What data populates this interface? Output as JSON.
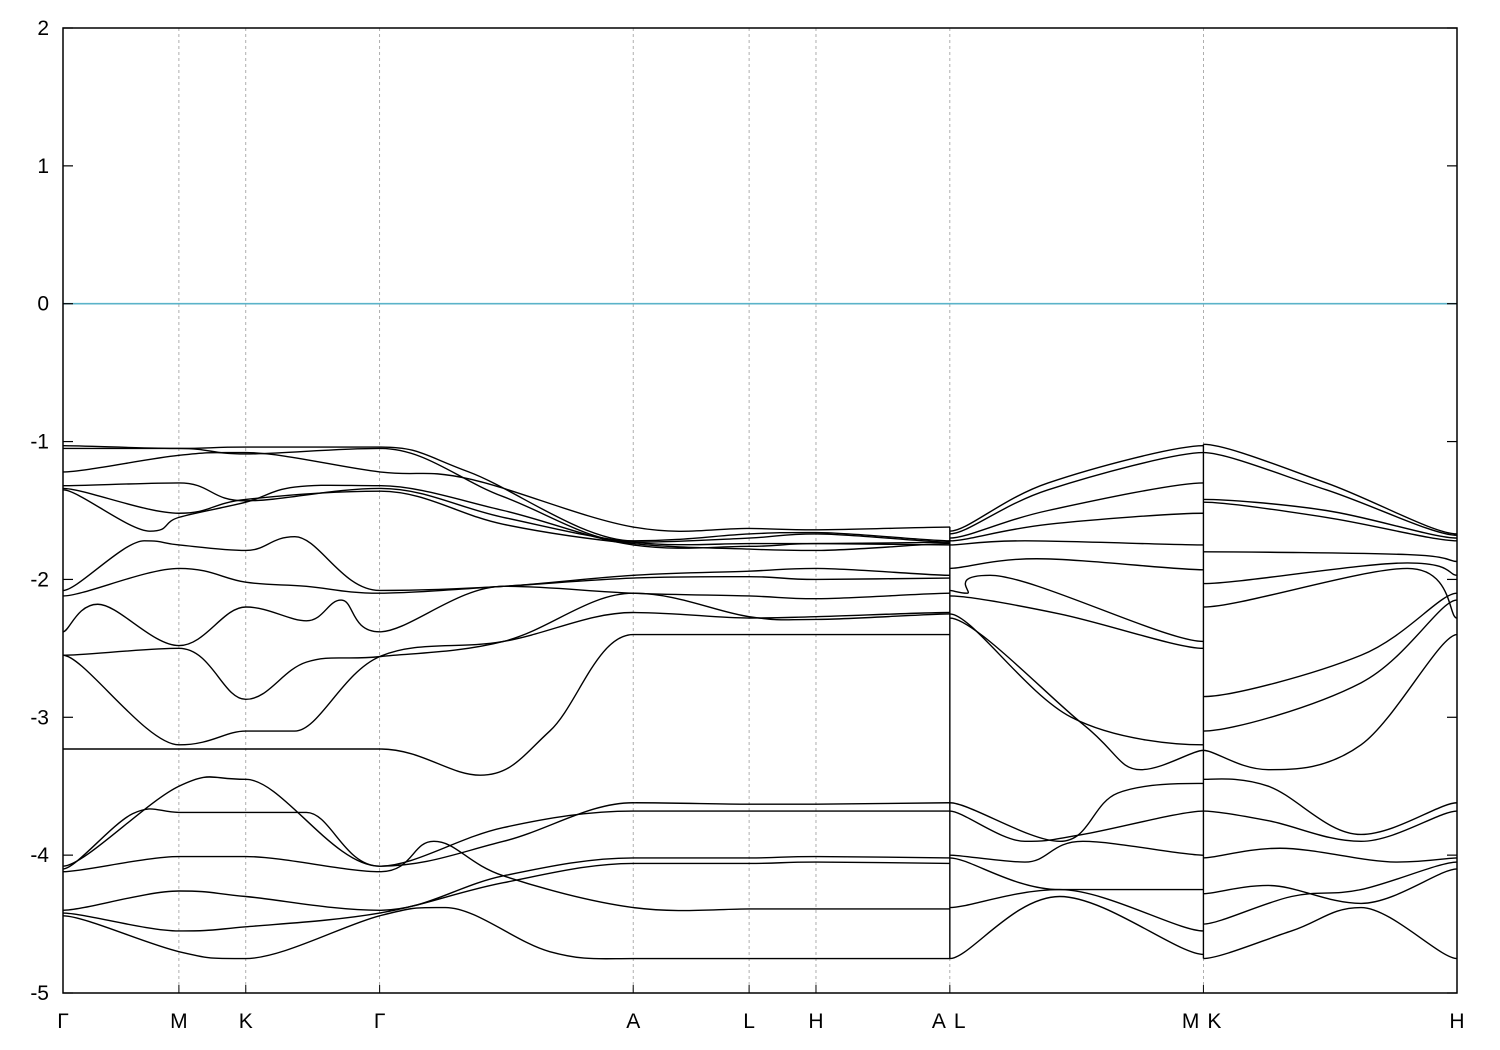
{
  "chart_data": {
    "type": "line",
    "title": "",
    "xlabel": "",
    "ylabel": "",
    "ylim": [
      -5,
      2
    ],
    "yticks": [
      "2",
      "1",
      "0",
      "-1",
      "-2",
      "-3",
      "-4",
      "-5"
    ],
    "ytick_values": [
      2,
      1,
      0,
      -1,
      -2,
      -3,
      -4,
      -5
    ],
    "grid": "vertical dashed lines at high-symmetry points",
    "legend": "none",
    "fermi_level": {
      "value": 0,
      "color": "#5bb3c9"
    },
    "band_color": "#000000",
    "kpoints": [
      {
        "label": "Γ",
        "pos": 0
      },
      {
        "label": "M",
        "pos": 1
      },
      {
        "label": "K",
        "pos": 1.577
      },
      {
        "label": "Γ",
        "pos": 2.732
      },
      {
        "label": "A",
        "pos": 4.92
      },
      {
        "label": "L",
        "pos": 5.92
      },
      {
        "label": "H",
        "pos": 6.497
      },
      {
        "label": "A",
        "pos": 7.652
      },
      {
        "label": "L",
        "pos": 7.652
      },
      {
        "label": "M",
        "pos": 9.84
      },
      {
        "label": "K",
        "pos": 9.84
      },
      {
        "label": "H",
        "pos": 12.028
      }
    ],
    "xlim": [
      0,
      12.028
    ],
    "series": [
      {
        "x": [
          0,
          1,
          1.577,
          2.732,
          3.5,
          4.92,
          5.92,
          6.497,
          7.652
        ],
        "y": [
          -1.03,
          -1.05,
          -1.04,
          -1.04,
          -1.22,
          -1.72,
          -1.67,
          -1.66,
          -1.72
        ]
      },
      {
        "x": [
          0,
          1,
          1.577,
          2.732,
          3.8,
          4.92,
          5.92,
          6.497,
          7.652
        ],
        "y": [
          -1.05,
          -1.05,
          -1.09,
          -1.05,
          -1.4,
          -1.73,
          -1.7,
          -1.67,
          -1.73
        ]
      },
      {
        "x": [
          0,
          1,
          1.577,
          2.732,
          3.5,
          4.92,
          5.92,
          6.497,
          7.652
        ],
        "y": [
          -1.22,
          -1.1,
          -1.08,
          -1.22,
          -1.27,
          -1.62,
          -1.63,
          -1.64,
          -1.62
        ]
      },
      {
        "x": [
          0,
          1,
          1.577,
          2.732,
          3.8,
          4.92,
          5.92,
          6.497,
          7.652
        ],
        "y": [
          -1.32,
          -1.3,
          -1.43,
          -1.34,
          -1.55,
          -1.73,
          -1.74,
          -1.74,
          -1.73
        ]
      },
      {
        "x": [
          0,
          1,
          1.577,
          2.732,
          3.8,
          4.92,
          5.92,
          6.497,
          7.652
        ],
        "y": [
          -1.34,
          -1.52,
          -1.42,
          -1.36,
          -1.6,
          -1.74,
          -1.78,
          -1.79,
          -1.74
        ]
      },
      {
        "x": [
          0,
          0.75,
          1,
          1.577,
          2.0,
          2.732,
          3.8,
          4.92,
          5.92,
          6.497,
          7.652
        ],
        "y": [
          -1.35,
          -1.65,
          -1.55,
          -1.44,
          -1.33,
          -1.32,
          -1.5,
          -1.75,
          -1.76,
          -1.74,
          -1.75
        ]
      },
      {
        "x": [
          0,
          0.7,
          1,
          1.577,
          2.0,
          2.732,
          3.8,
          4.92,
          5.92,
          6.497,
          7.652
        ],
        "y": [
          -2.08,
          -1.72,
          -1.75,
          -1.79,
          -1.69,
          -2.08,
          -2.05,
          -1.97,
          -1.94,
          -1.92,
          -1.97
        ]
      },
      {
        "x": [
          0,
          1,
          1.577,
          2.1,
          2.732,
          3.8,
          4.92,
          5.92,
          6.497,
          7.652
        ],
        "y": [
          -2.12,
          -1.92,
          -2.02,
          -2.05,
          -2.1,
          -2.05,
          -1.99,
          -1.98,
          -2.0,
          -1.99
        ]
      },
      {
        "x": [
          0,
          0.3,
          1,
          1.577,
          2.1,
          2.4,
          2.732,
          3.8,
          4.92,
          5.92,
          6.497,
          7.652
        ],
        "y": [
          -2.38,
          -2.18,
          -2.48,
          -2.2,
          -2.3,
          -2.15,
          -2.38,
          -2.05,
          -2.1,
          -2.12,
          -2.14,
          -2.1
        ]
      },
      {
        "x": [
          0,
          1,
          1.577,
          2.1,
          2.732,
          3.8,
          4.92,
          5.92,
          6.497,
          7.652
        ],
        "y": [
          -2.55,
          -2.5,
          -2.87,
          -2.6,
          -2.56,
          -2.45,
          -2.1,
          -2.27,
          -2.29,
          -2.25
        ]
      },
      {
        "x": [
          0,
          1,
          1.577,
          2.0,
          2.732,
          3.8,
          4.92,
          5.92,
          6.497,
          7.652
        ],
        "y": [
          -2.55,
          -3.2,
          -3.1,
          -3.1,
          -2.56,
          -2.45,
          -2.24,
          -2.28,
          -2.27,
          -2.24
        ]
      },
      {
        "x": [
          0,
          1,
          1.577,
          2.732,
          3.6,
          4.2,
          4.92,
          5.92,
          6.497,
          7.652
        ],
        "y": [
          -3.23,
          -3.23,
          -3.23,
          -3.23,
          -3.42,
          -3.1,
          -2.4,
          -2.4,
          -2.4,
          -2.4
        ]
      },
      {
        "x": [
          0,
          1,
          1.577,
          2.732,
          3.8,
          4.92,
          5.92,
          6.497,
          7.652
        ],
        "y": [
          -4.08,
          -3.5,
          -3.45,
          -4.08,
          -3.9,
          -3.62,
          -3.63,
          -3.63,
          -3.62
        ]
      },
      {
        "x": [
          0,
          0.6,
          1,
          1.577,
          2.1,
          2.732,
          3.8,
          4.92,
          5.92,
          6.497,
          7.652
        ],
        "y": [
          -4.1,
          -3.7,
          -3.69,
          -3.69,
          -3.69,
          -4.08,
          -3.8,
          -3.68,
          -3.68,
          -3.68,
          -3.68
        ]
      },
      {
        "x": [
          0,
          1,
          1.577,
          2.732,
          3.2,
          3.8,
          4.92,
          5.92,
          6.497,
          7.652
        ],
        "y": [
          -4.12,
          -4.01,
          -4.01,
          -4.12,
          -3.9,
          -4.15,
          -4.38,
          -4.39,
          -4.39,
          -4.39
        ]
      },
      {
        "x": [
          0,
          1,
          1.577,
          2.732,
          3.8,
          4.92,
          5.92,
          6.497,
          7.652
        ],
        "y": [
          -4.4,
          -4.26,
          -4.3,
          -4.4,
          -4.15,
          -4.02,
          -4.02,
          -4.01,
          -4.02
        ]
      },
      {
        "x": [
          0,
          1,
          1.577,
          2.732,
          3.8,
          4.92,
          5.92,
          6.497,
          7.652
        ],
        "y": [
          -4.42,
          -4.55,
          -4.52,
          -4.42,
          -4.2,
          -4.06,
          -4.06,
          -4.05,
          -4.06
        ]
      },
      {
        "x": [
          0,
          1,
          1.577,
          2.732,
          3.3,
          4.2,
          4.92,
          5.92,
          6.497,
          7.652
        ],
        "y": [
          -4.44,
          -4.7,
          -4.75,
          -4.44,
          -4.38,
          -4.7,
          -4.75,
          -4.75,
          -4.75,
          -4.75
        ]
      },
      {
        "x": [
          7.652,
          8.5,
          9.84
        ],
        "y": [
          -1.65,
          -1.3,
          -1.03
        ]
      },
      {
        "x": [
          7.652,
          8.5,
          9.84
        ],
        "y": [
          -1.67,
          -1.35,
          -1.08
        ]
      },
      {
        "x": [
          7.652,
          8.5,
          9.84
        ],
        "y": [
          -1.7,
          -1.5,
          -1.3
        ]
      },
      {
        "x": [
          7.652,
          8.5,
          9.84
        ],
        "y": [
          -1.72,
          -1.6,
          -1.52
        ]
      },
      {
        "x": [
          7.652,
          8.3,
          9.84
        ],
        "y": [
          -1.75,
          -1.72,
          -1.75
        ]
      },
      {
        "x": [
          7.652,
          8.4,
          9.84
        ],
        "y": [
          -1.92,
          -1.85,
          -1.93
        ]
      },
      {
        "x": [
          7.652,
          7.8,
          8.0,
          9.84
        ],
        "y": [
          -2.08,
          -2.1,
          -1.97,
          -2.45
        ]
      },
      {
        "x": [
          7.652,
          8.6,
          9.84
        ],
        "y": [
          -2.12,
          -2.25,
          -2.5
        ]
      },
      {
        "x": [
          7.652,
          8.7,
          9.84
        ],
        "y": [
          -2.25,
          -3.0,
          -3.2
        ]
      },
      {
        "x": [
          7.652,
          8.8,
          9.3,
          9.84
        ],
        "y": [
          -2.28,
          -3.05,
          -3.38,
          -3.24
        ]
      },
      {
        "x": [
          7.652,
          8.6,
          9.1,
          9.84
        ],
        "y": [
          -3.62,
          -3.9,
          -3.55,
          -3.48
        ]
      },
      {
        "x": [
          7.652,
          8.3,
          8.8,
          9.84
        ],
        "y": [
          -3.68,
          -3.9,
          -3.85,
          -3.68
        ]
      },
      {
        "x": [
          7.652,
          8.3,
          8.8,
          9.84
        ],
        "y": [
          -4.0,
          -4.05,
          -3.9,
          -4.0
        ]
      },
      {
        "x": [
          7.652,
          8.6,
          9.84
        ],
        "y": [
          -4.02,
          -4.25,
          -4.25
        ]
      },
      {
        "x": [
          7.652,
          8.6,
          9.84
        ],
        "y": [
          -4.38,
          -4.25,
          -4.55
        ]
      },
      {
        "x": [
          7.652,
          8.6,
          9.84
        ],
        "y": [
          -4.75,
          -4.3,
          -4.72
        ]
      },
      {
        "x": [
          9.84,
          10.9,
          12.028
        ],
        "y": [
          -1.02,
          -1.3,
          -1.67
        ]
      },
      {
        "x": [
          9.84,
          10.9,
          12.028
        ],
        "y": [
          -1.08,
          -1.35,
          -1.68
        ]
      },
      {
        "x": [
          9.84,
          10.9,
          12.028
        ],
        "y": [
          -1.42,
          -1.5,
          -1.7
        ]
      },
      {
        "x": [
          9.84,
          10.9,
          12.028
        ],
        "y": [
          -1.44,
          -1.55,
          -1.72
        ]
      },
      {
        "x": [
          9.84,
          11.6,
          12.028
        ],
        "y": [
          -1.8,
          -1.82,
          -1.87
        ]
      },
      {
        "x": [
          9.84,
          11.6,
          12.028
        ],
        "y": [
          -2.03,
          -1.88,
          -1.97
        ]
      },
      {
        "x": [
          9.84,
          11.6,
          12.028
        ],
        "y": [
          -2.2,
          -1.92,
          -2.28
        ]
      },
      {
        "x": [
          9.84,
          11.2,
          12.028
        ],
        "y": [
          -2.85,
          -2.55,
          -2.1
        ]
      },
      {
        "x": [
          9.84,
          11.2,
          12.028
        ],
        "y": [
          -3.1,
          -2.75,
          -2.15
        ]
      },
      {
        "x": [
          9.84,
          10.4,
          11.2,
          12.028
        ],
        "y": [
          -3.24,
          -3.38,
          -3.2,
          -2.4
        ]
      },
      {
        "x": [
          9.84,
          10.4,
          11.2,
          12.028
        ],
        "y": [
          -3.45,
          -3.5,
          -3.85,
          -3.62
        ]
      },
      {
        "x": [
          9.84,
          10.4,
          11.2,
          12.028
        ],
        "y": [
          -3.68,
          -3.75,
          -3.9,
          -3.68
        ]
      },
      {
        "x": [
          9.84,
          10.5,
          11.5,
          12.028
        ],
        "y": [
          -4.02,
          -3.95,
          -4.05,
          -4.02
        ]
      },
      {
        "x": [
          9.84,
          10.4,
          11.2,
          12.028
        ],
        "y": [
          -4.28,
          -4.22,
          -4.35,
          -4.1
        ]
      },
      {
        "x": [
          9.84,
          10.6,
          11.2,
          12.028
        ],
        "y": [
          -4.5,
          -4.3,
          -4.25,
          -4.05
        ]
      },
      {
        "x": [
          9.84,
          10.6,
          11.2,
          12.028
        ],
        "y": [
          -4.75,
          -4.55,
          -4.38,
          -4.75
        ]
      }
    ]
  }
}
